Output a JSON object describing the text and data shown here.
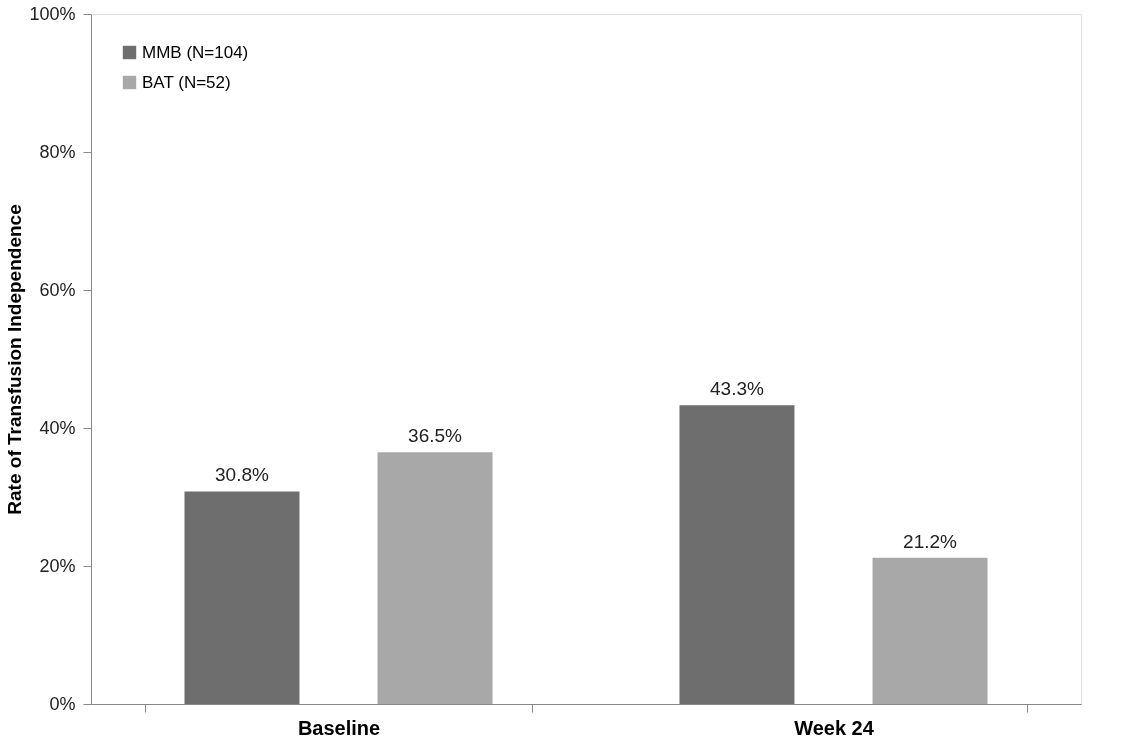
{
  "chart_data": {
    "type": "bar",
    "ylabel": "Rate of Transfusion Independence",
    "categories": [
      "Baseline",
      "Week 24"
    ],
    "series": [
      {
        "name": "MMB (N=104)",
        "color": "#6e6e6e",
        "values": [
          30.8,
          43.3
        ],
        "value_labels": [
          "30.8%",
          "43.3%"
        ]
      },
      {
        "name": "BAT (N=52)",
        "color": "#a8a8a8",
        "values": [
          36.5,
          21.2
        ],
        "value_labels": [
          "36.5%",
          "21.2%"
        ]
      }
    ],
    "ylim": [
      0,
      100
    ],
    "yticks": [
      {
        "value": 0,
        "label": "0%"
      },
      {
        "value": 20,
        "label": "20%"
      },
      {
        "value": 40,
        "label": "40%"
      },
      {
        "value": 60,
        "label": "60%"
      },
      {
        "value": 80,
        "label": "80%"
      },
      {
        "value": 100,
        "label": "100%"
      }
    ],
    "grid": false,
    "legend": "top left"
  }
}
